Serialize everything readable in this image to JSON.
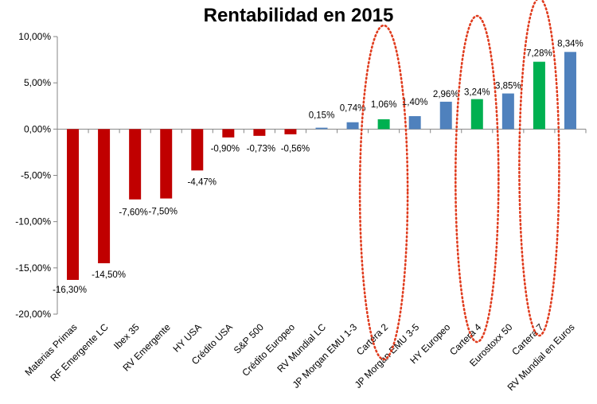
{
  "chart_data": {
    "type": "bar",
    "title": "Rentabilidad en 2015",
    "xlabel": "",
    "ylabel": "",
    "ylim": [
      -20,
      10
    ],
    "yticks": [
      10,
      5,
      0,
      -5,
      -10,
      -15,
      -20
    ],
    "ytick_labels": [
      "10,00%",
      "5,00%",
      "0,00%",
      "-5,00%",
      "-10,00%",
      "-15,00%",
      "-20,00%"
    ],
    "grid": false,
    "categories": [
      "Materias Primas",
      "RF Emergente LC",
      "Ibex 35",
      "RV Emergente",
      "HY USA",
      "Crédito USA",
      "S&P 500",
      "Crédito Europeo",
      "RV Mundial LC",
      "JP Morgan EMU 1-3",
      "Cartera 2",
      "JP Morgan EMU 3-5",
      "HY Europeo",
      "Cartera 4",
      "Eurostoxx 50",
      "Cartera 7",
      "RV Mundial en Euros"
    ],
    "values": [
      -16.3,
      -14.5,
      -7.6,
      -7.5,
      -4.47,
      -0.9,
      -0.73,
      -0.56,
      0.15,
      0.74,
      1.06,
      1.4,
      2.96,
      3.24,
      3.85,
      7.28,
      8.34
    ],
    "value_labels": [
      "-16,30%",
      "-14,50%",
      "-7,60%",
      "-7,50%",
      "-4,47%",
      "-0,90%",
      "-0,73%",
      "-0,56%",
      "0,15%",
      "0,74%",
      "1,06%",
      "1,40%",
      "2,96%",
      "3,24%",
      "3,85%",
      "7,28%",
      "8,34%"
    ],
    "bar_colors": [
      "#c00000",
      "#c00000",
      "#c00000",
      "#c00000",
      "#c00000",
      "#c00000",
      "#c00000",
      "#c00000",
      "#4f81bd",
      "#4f81bd",
      "#00b050",
      "#4f81bd",
      "#4f81bd",
      "#00b050",
      "#4f81bd",
      "#00b050",
      "#4f81bd"
    ],
    "highlighted_categories": [
      "Cartera 2",
      "Cartera 4",
      "Cartera 7"
    ],
    "highlight_color": "#e03c1e",
    "axis_color": "#868686"
  }
}
